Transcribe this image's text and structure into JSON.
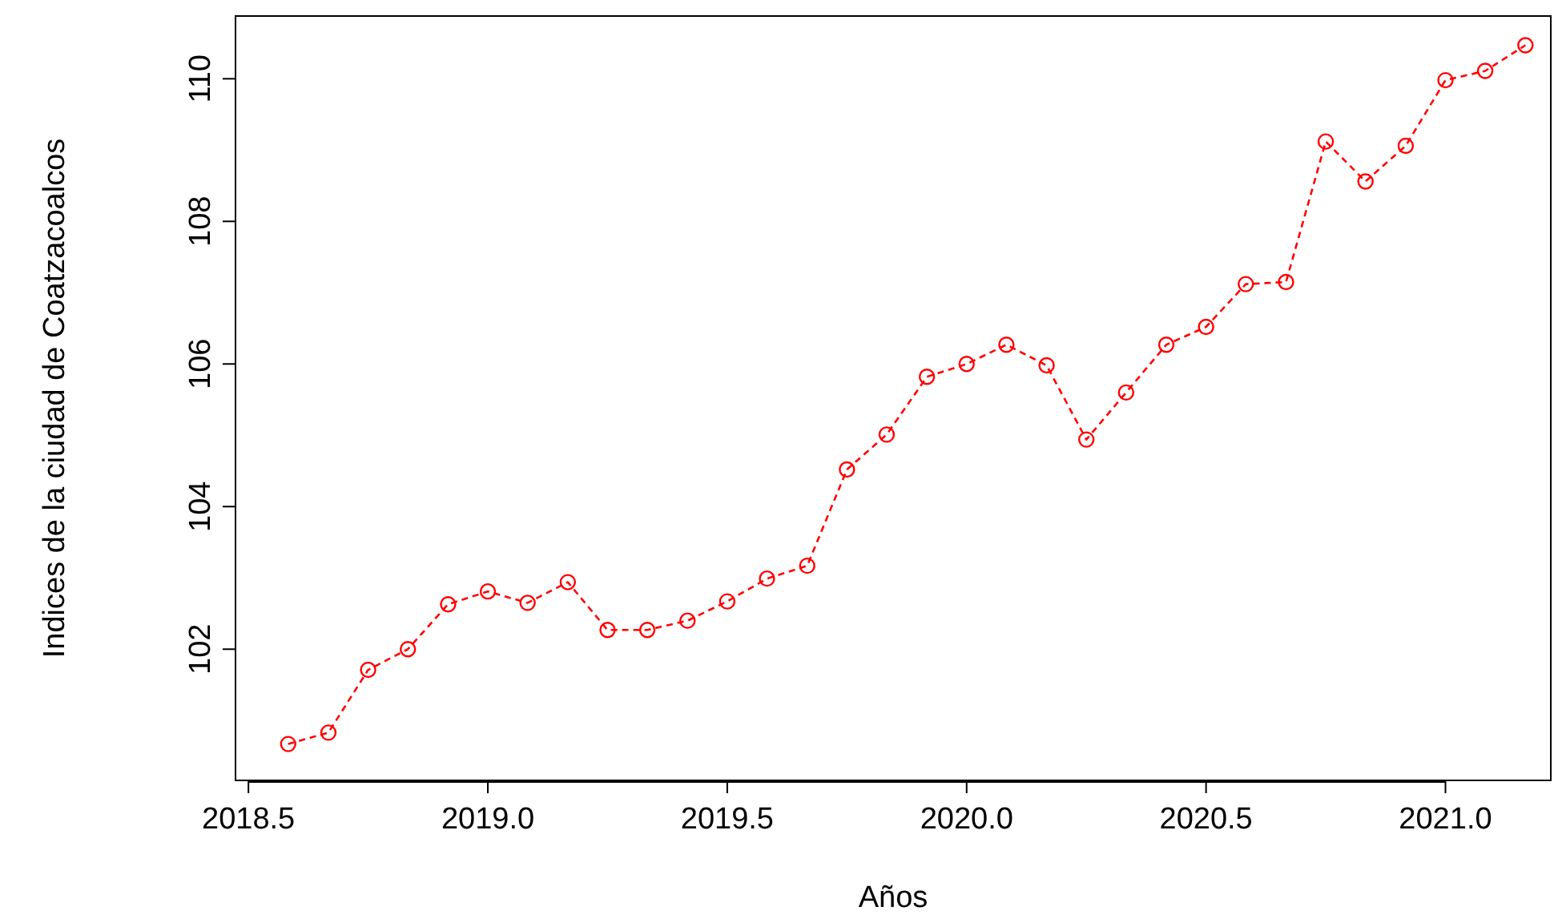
{
  "chart_data": {
    "type": "line",
    "xlabel": "Años",
    "ylabel": "Indices de la ciudad de Coatzacoalcos",
    "x": [
      2018.583,
      2018.667,
      2018.75,
      2018.833,
      2018.917,
      2019.0,
      2019.083,
      2019.167,
      2019.25,
      2019.333,
      2019.417,
      2019.5,
      2019.583,
      2019.667,
      2019.75,
      2019.833,
      2019.917,
      2020.0,
      2020.083,
      2020.167,
      2020.25,
      2020.333,
      2020.417,
      2020.5,
      2020.583,
      2020.667,
      2020.75,
      2020.833,
      2020.917,
      2021.0,
      2021.083,
      2021.167
    ],
    "series": [
      {
        "color": "#ff0000",
        "values": [
          100.67,
          100.83,
          101.71,
          102.0,
          102.63,
          102.81,
          102.65,
          102.94,
          102.27,
          102.27,
          102.4,
          102.67,
          102.99,
          103.17,
          104.52,
          105.01,
          105.82,
          106.0,
          106.27,
          105.98,
          104.94,
          105.6,
          106.27,
          106.52,
          107.12,
          107.15,
          109.12,
          108.56,
          109.06,
          109.98,
          110.11,
          110.47
        ]
      }
    ],
    "xlim": [
      2018.473,
      2021.22
    ],
    "ylim": [
      100.16,
      110.88
    ],
    "xticks": [
      {
        "value": 2018.5,
        "label": "2018.5"
      },
      {
        "value": 2019,
        "label": "2019.0"
      },
      {
        "value": 2019.5,
        "label": "2019.5"
      },
      {
        "value": 2020,
        "label": "2020.0"
      },
      {
        "value": 2020.5,
        "label": "2020.5"
      },
      {
        "value": 2021,
        "label": "2021.0"
      }
    ],
    "yticks": [
      102,
      104,
      106,
      108,
      110
    ],
    "marker": "circle",
    "line_style": "dashed",
    "grid": false
  }
}
